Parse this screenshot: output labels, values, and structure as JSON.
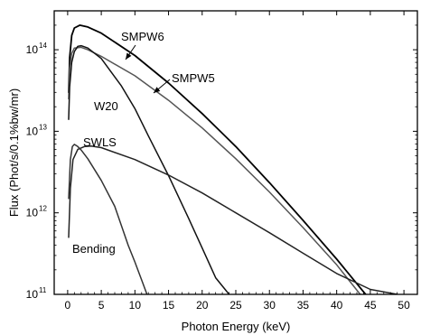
{
  "chart_data": {
    "type": "line",
    "title": "",
    "xlabel": "Photon Energy (keV)",
    "ylabel": "Flux (Phot/s/0.1%bw/mr)",
    "xlim": [
      -2,
      52
    ],
    "ylim": [
      100000000000.0,
      300000000000000.0
    ],
    "y_scale": "log",
    "grid": false,
    "legend": "none (curves labeled directly)",
    "x_ticks": [
      {
        "value": 0,
        "label": "0"
      },
      {
        "value": 5,
        "label": "5"
      },
      {
        "value": 10,
        "label": "10"
      },
      {
        "value": 15,
        "label": "15"
      },
      {
        "value": 20,
        "label": "20"
      },
      {
        "value": 25,
        "label": "25"
      },
      {
        "value": 30,
        "label": "30"
      },
      {
        "value": 35,
        "label": "35"
      },
      {
        "value": 40,
        "label": "40"
      },
      {
        "value": 45,
        "label": "45"
      },
      {
        "value": 50,
        "label": "50"
      }
    ],
    "y_ticks": [
      {
        "value": 100000000000.0,
        "base": "10",
        "exp": "11"
      },
      {
        "value": 1000000000000.0,
        "base": "10",
        "exp": "12"
      },
      {
        "value": 10000000000000.0,
        "base": "10",
        "exp": "13"
      },
      {
        "value": 100000000000000.0,
        "base": "10",
        "exp": "14"
      }
    ],
    "series": [
      {
        "name": "SMPW6",
        "color": "#000000",
        "width": 1.8,
        "points": [
          [
            0.15,
            30000000000000.0
          ],
          [
            0.3,
            80000000000000.0
          ],
          [
            0.6,
            150000000000000.0
          ],
          [
            1,
            185000000000000.0
          ],
          [
            1.8,
            200000000000000.0
          ],
          [
            3,
            190000000000000.0
          ],
          [
            5,
            160000000000000.0
          ],
          [
            10,
            85000000000000.0
          ],
          [
            15,
            39000000000000.0
          ],
          [
            20,
            16500000000000.0
          ],
          [
            25,
            6500000000000.0
          ],
          [
            30,
            2350000000000.0
          ],
          [
            35,
            810000000000.0
          ],
          [
            40,
            270000000000.0
          ],
          [
            43,
            135000000000.0
          ],
          [
            44.3,
            100000000000.0
          ]
        ]
      },
      {
        "name": "SMPW5",
        "color": "#555555",
        "width": 1.5,
        "points": [
          [
            0.15,
            25000000000000.0
          ],
          [
            0.3,
            60000000000000.0
          ],
          [
            0.6,
            90000000000000.0
          ],
          [
            1,
            105000000000000.0
          ],
          [
            2,
            107000000000000.0
          ],
          [
            3,
            100000000000000.0
          ],
          [
            5,
            83000000000000.0
          ],
          [
            10,
            48000000000000.0
          ],
          [
            15,
            24000000000000.0
          ],
          [
            20,
            11000000000000.0
          ],
          [
            25,
            4600000000000.0
          ],
          [
            30,
            1800000000000.0
          ],
          [
            35,
            660000000000.0
          ],
          [
            40,
            230000000000.0
          ],
          [
            43.5,
            100000000000.0
          ]
        ]
      },
      {
        "name": "W20",
        "color": "#111111",
        "width": 1.5,
        "points": [
          [
            0.15,
            14000000000000.0
          ],
          [
            0.3,
            35000000000000.0
          ],
          [
            0.6,
            70000000000000.0
          ],
          [
            1,
            95000000000000.0
          ],
          [
            1.5,
            110000000000000.0
          ],
          [
            2,
            112000000000000.0
          ],
          [
            3,
            105000000000000.0
          ],
          [
            5,
            78000000000000.0
          ],
          [
            8,
            36000000000000.0
          ],
          [
            10,
            19000000000000.0
          ],
          [
            12,
            8800000000000.0
          ],
          [
            15,
            2850000000000.0
          ],
          [
            18,
            850000000000.0
          ],
          [
            20,
            370000000000.0
          ],
          [
            22,
            160000000000.0
          ],
          [
            24,
            100000000000.0
          ]
        ]
      },
      {
        "name": "SWLS",
        "color": "#222222",
        "width": 1.5,
        "points": [
          [
            0.15,
            500000000000.0
          ],
          [
            0.4,
            2000000000000.0
          ],
          [
            0.8,
            4500000000000.0
          ],
          [
            1.5,
            6000000000000.0
          ],
          [
            2.5,
            6500000000000.0
          ],
          [
            3.5,
            6600000000000.0
          ],
          [
            5,
            6300000000000.0
          ],
          [
            10,
            4500000000000.0
          ],
          [
            15,
            2900000000000.0
          ],
          [
            20,
            1750000000000.0
          ],
          [
            25,
            1000000000000.0
          ],
          [
            30,
            570000000000.0
          ],
          [
            35,
            320000000000.0
          ],
          [
            40,
            180000000000.0
          ],
          [
            45,
            115000000000.0
          ],
          [
            49,
            100000000000.0
          ]
        ]
      },
      {
        "name": "Bending",
        "color": "#333333",
        "width": 1.5,
        "points": [
          [
            0.15,
            1500000000000.0
          ],
          [
            0.4,
            4500000000000.0
          ],
          [
            0.7,
            6500000000000.0
          ],
          [
            1,
            6900000000000.0
          ],
          [
            1.5,
            6500000000000.0
          ],
          [
            2,
            5900000000000.0
          ],
          [
            3,
            4600000000000.0
          ],
          [
            5,
            2500000000000.0
          ],
          [
            7,
            1200000000000.0
          ],
          [
            9,
            400000000000.0
          ],
          [
            10,
            250000000000.0
          ],
          [
            11,
            150000000000.0
          ],
          [
            11.8,
            100000000000.0
          ]
        ]
      }
    ],
    "annotations": [
      {
        "text": "SMPW6",
        "arrow": true
      },
      {
        "text": "SMPW5",
        "arrow": true
      },
      {
        "text": "W20",
        "arrow": false
      },
      {
        "text": "SWLS",
        "arrow": false
      },
      {
        "text": "Bending",
        "arrow": false
      }
    ]
  }
}
